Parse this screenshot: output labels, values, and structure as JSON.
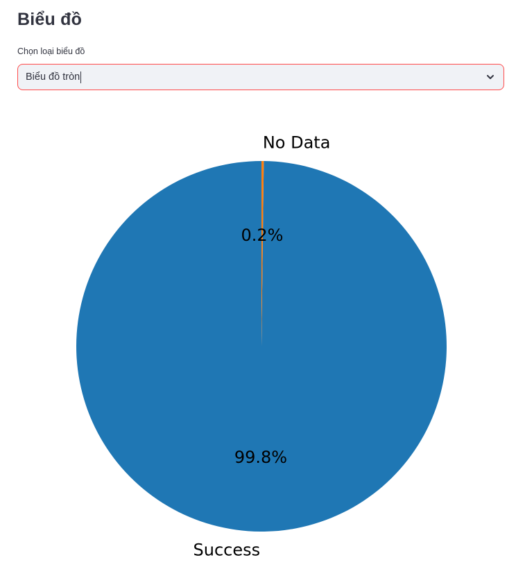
{
  "page": {
    "title": "Biểu đồ"
  },
  "select": {
    "label": "Chọn loại biểu đồ",
    "value": "Biểu đồ tròn",
    "icon": "chevron-down-icon"
  },
  "chart_data": {
    "type": "pie",
    "categories": [
      "Success",
      "No Data"
    ],
    "values": [
      99.8,
      0.2
    ],
    "percent_labels": [
      "99.8%",
      "0.2%"
    ],
    "colors": [
      "#1f77b4",
      "#ff7f0e"
    ],
    "start_angle_deg": 90,
    "direction": "counterclockwise",
    "title": "",
    "legend": "none"
  }
}
